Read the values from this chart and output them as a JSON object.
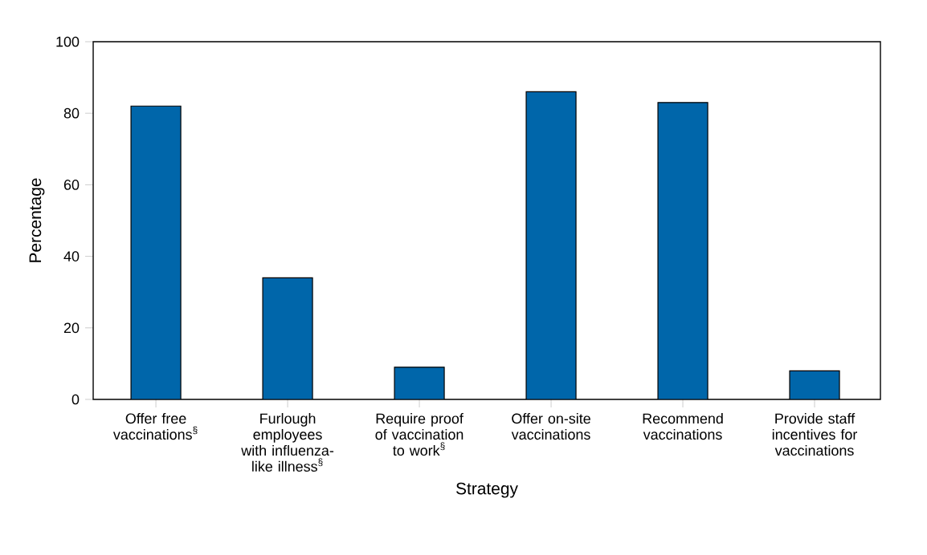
{
  "chart_data": {
    "type": "bar",
    "xlabel": "Strategy",
    "ylabel": "Percentage",
    "categories": [
      "Offer free vaccinations$^{§}$",
      "Furlough employees with influenza-like illness$^{§}$",
      "Require proof of vaccination to work$^{§}$",
      "Offer on-site vaccinations",
      "Recommend vaccinations",
      "Provide staff incentives for vaccinations"
    ],
    "values": [
      82,
      34,
      9,
      86,
      83,
      8
    ],
    "color": "#0066aa",
    "ylim": [
      0,
      100
    ],
    "yticks": [
      0,
      20,
      40,
      60,
      80,
      100
    ]
  }
}
